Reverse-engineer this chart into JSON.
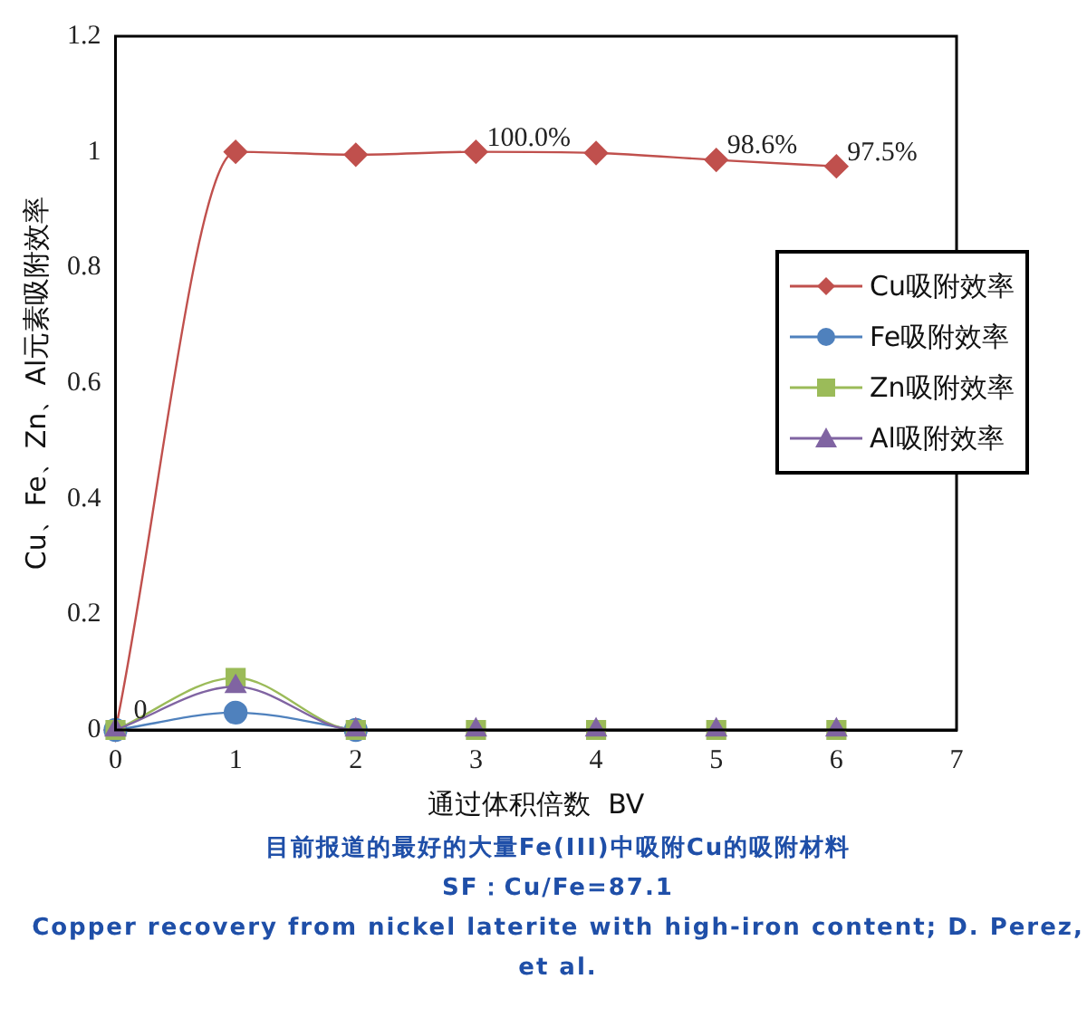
{
  "chart_data": {
    "type": "line",
    "xlabel": "通过体积倍数  BV",
    "ylabel": "Cu、Fe、Zn、Al元素吸附效率",
    "x": [
      0,
      1,
      2,
      3,
      4,
      5,
      6
    ],
    "xlim": [
      0,
      7
    ],
    "xticks": [
      0,
      1,
      2,
      3,
      4,
      5,
      6,
      7
    ],
    "ylim": [
      0,
      1.2
    ],
    "yticks": [
      0,
      0.2,
      0.4,
      0.6,
      0.8,
      {
        "value": 1,
        "label": "1"
      },
      1.2
    ],
    "grid": false,
    "legend": "right",
    "series": [
      {
        "name": "Cu吸附效率",
        "color": "#c0504d",
        "marker": "diamond",
        "values": [
          0,
          1.0,
          0.995,
          1.0,
          0.998,
          0.986,
          0.975
        ],
        "value_labels": [
          "0",
          null,
          null,
          "100.0%",
          null,
          "98.6%",
          "97.5%"
        ]
      },
      {
        "name": "Fe吸附效率",
        "color": "#4f81bd",
        "marker": "circle",
        "values": [
          0,
          0.03,
          0,
          null,
          null,
          null,
          null
        ]
      },
      {
        "name": "Zn吸附效率",
        "color": "#9bbb59",
        "marker": "square",
        "values": [
          0,
          0.09,
          0,
          0,
          0,
          0,
          0
        ]
      },
      {
        "name": "Al吸附效率",
        "color": "#8064a2",
        "marker": "triangle",
        "values": [
          0,
          0.075,
          0,
          0,
          0,
          0,
          0
        ]
      }
    ],
    "annotations": [
      "目前报道的最好的大量Fe(III)中吸附Cu的吸附材料",
      "SF：Cu/Fe=87.1",
      "Copper recovery from nickel laterite with high-iron content; D. Perez, et al."
    ]
  }
}
